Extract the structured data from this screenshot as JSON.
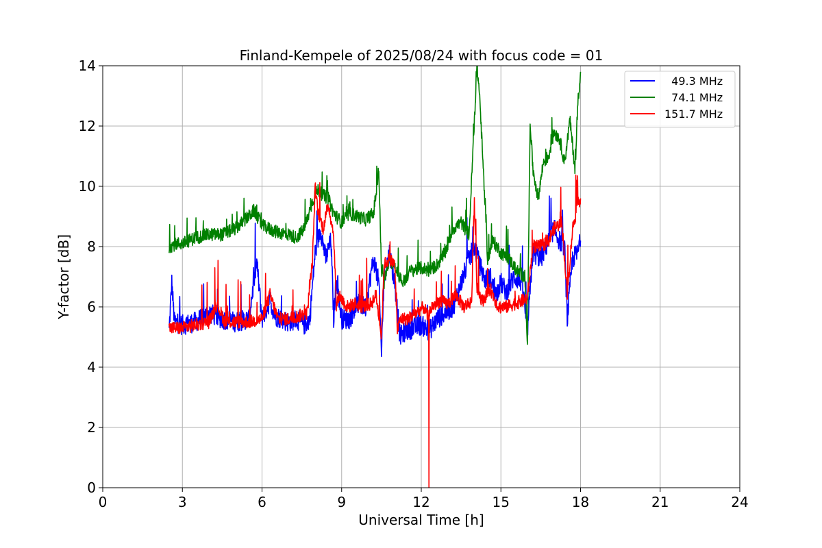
{
  "chart_data": {
    "type": "line",
    "title": "Finland-Kempele of 2025/08/24 with focus code = 01",
    "xlabel": "Universal Time [h]",
    "ylabel": "Y-factor [dB]",
    "xlim": [
      0,
      24
    ],
    "ylim": [
      0,
      14
    ],
    "xticks": [
      0,
      3,
      6,
      9,
      12,
      15,
      18,
      21,
      24
    ],
    "yticks": [
      0,
      2,
      4,
      6,
      8,
      10,
      12,
      14
    ],
    "grid": true,
    "legend_position": "top-right",
    "series": [
      {
        "name": "49.3 MHz",
        "legend_label": "  49.3 MHz",
        "color": "#0000ff",
        "x": [
          2.5,
          2.6,
          2.7,
          3.0,
          3.5,
          4.0,
          4.5,
          5.0,
          5.5,
          5.8,
          6.0,
          6.3,
          6.5,
          7.0,
          7.3,
          7.6,
          7.8,
          8.0,
          8.2,
          8.4,
          8.6,
          8.7,
          8.8,
          9.0,
          9.3,
          9.6,
          9.9,
          10.2,
          10.4,
          10.5,
          10.6,
          10.8,
          11.0,
          11.2,
          11.4,
          11.7,
          12.0,
          12.3,
          12.6,
          12.9,
          13.2,
          13.5,
          13.8,
          14.0,
          14.2,
          14.4,
          14.6,
          14.8,
          15.0,
          15.2,
          15.5,
          15.8,
          16.0,
          16.2,
          16.5,
          16.8,
          17.0,
          17.2,
          17.4,
          17.5,
          17.7,
          17.9,
          18.0
        ],
        "values": [
          5.2,
          6.8,
          5.5,
          5.4,
          5.5,
          5.8,
          5.6,
          5.5,
          5.6,
          7.5,
          5.6,
          6.2,
          5.7,
          5.5,
          5.6,
          5.4,
          5.6,
          7.8,
          8.6,
          7.6,
          8.2,
          5.6,
          7.0,
          5.6,
          5.6,
          6.1,
          6.0,
          7.6,
          6.8,
          4.5,
          7.0,
          7.8,
          6.8,
          5.0,
          5.2,
          5.3,
          5.4,
          5.2,
          5.6,
          5.8,
          6.0,
          6.8,
          7.6,
          8.0,
          7.4,
          6.9,
          7.0,
          6.4,
          6.8,
          6.5,
          7.0,
          6.8,
          5.2,
          7.8,
          7.6,
          8.2,
          8.6,
          8.2,
          8.0,
          5.6,
          7.6,
          7.8,
          8.2
        ]
      },
      {
        "name": "74.1 MHz",
        "legend_label": "  74.1 MHz",
        "color": "#008000",
        "x": [
          2.5,
          2.8,
          3.0,
          3.5,
          4.0,
          4.5,
          5.0,
          5.5,
          5.7,
          6.0,
          6.5,
          7.0,
          7.3,
          7.6,
          7.9,
          8.1,
          8.3,
          8.5,
          8.7,
          9.0,
          9.3,
          9.6,
          9.9,
          10.2,
          10.4,
          10.5,
          10.6,
          10.8,
          11.0,
          11.3,
          11.6,
          12.0,
          12.3,
          12.6,
          12.9,
          13.2,
          13.5,
          13.8,
          14.0,
          14.1,
          14.2,
          14.3,
          14.5,
          14.7,
          15.0,
          15.3,
          15.6,
          15.9,
          16.0,
          16.1,
          16.2,
          16.4,
          16.6,
          16.8,
          17.0,
          17.2,
          17.4,
          17.6,
          17.8,
          17.9,
          18.0
        ],
        "values": [
          8.0,
          8.1,
          8.1,
          8.3,
          8.4,
          8.4,
          8.6,
          9.0,
          9.2,
          8.7,
          8.5,
          8.4,
          8.3,
          8.6,
          9.5,
          9.9,
          9.7,
          9.6,
          9.1,
          8.8,
          9.1,
          9.0,
          8.9,
          9.1,
          10.5,
          7.2,
          6.8,
          7.6,
          7.3,
          6.8,
          7.2,
          7.3,
          7.2,
          7.4,
          7.8,
          8.6,
          8.8,
          8.4,
          12.2,
          14.0,
          13.0,
          11.2,
          7.6,
          8.2,
          7.8,
          7.6,
          7.2,
          7.0,
          4.8,
          12.2,
          10.6,
          9.6,
          10.8,
          11.0,
          11.8,
          11.6,
          10.8,
          12.2,
          10.5,
          12.8,
          13.8
        ]
      },
      {
        "name": "151.7 MHz",
        "legend_label": "151.7 MHz",
        "color": "#ff0000",
        "x": [
          2.5,
          3.0,
          3.5,
          4.0,
          4.3,
          4.6,
          5.0,
          5.5,
          6.0,
          6.3,
          6.6,
          7.0,
          7.4,
          7.7,
          7.9,
          8.0,
          8.1,
          8.3,
          8.5,
          8.7,
          8.8,
          8.9,
          9.2,
          9.5,
          9.8,
          10.1,
          10.3,
          10.5,
          10.6,
          10.8,
          11.0,
          11.1,
          11.2,
          11.5,
          11.8,
          12.1,
          12.28,
          12.29,
          12.3,
          12.4,
          12.7,
          13.0,
          13.3,
          13.6,
          13.9,
          14.0,
          14.1,
          14.3,
          14.6,
          14.9,
          15.2,
          15.5,
          15.8,
          16.0,
          16.2,
          16.5,
          16.8,
          17.0,
          17.3,
          17.5,
          17.7,
          17.9,
          18.0
        ],
        "values": [
          5.3,
          5.3,
          5.4,
          5.5,
          6.1,
          5.5,
          5.5,
          5.5,
          5.6,
          6.4,
          5.6,
          5.6,
          5.7,
          5.8,
          7.5,
          9.9,
          9.2,
          8.6,
          9.4,
          8.4,
          6.0,
          6.4,
          6.0,
          6.1,
          6.0,
          6.1,
          6.4,
          5.0,
          7.4,
          7.6,
          7.4,
          5.2,
          5.6,
          5.6,
          5.8,
          6.0,
          5.6,
          0.0,
          5.8,
          6.0,
          6.2,
          6.1,
          6.4,
          6.0,
          6.2,
          9.6,
          6.6,
          6.2,
          6.6,
          6.0,
          6.0,
          6.1,
          6.2,
          6.3,
          8.0,
          8.0,
          8.2,
          8.6,
          8.8,
          6.4,
          8.6,
          9.4,
          9.6
        ]
      }
    ]
  }
}
